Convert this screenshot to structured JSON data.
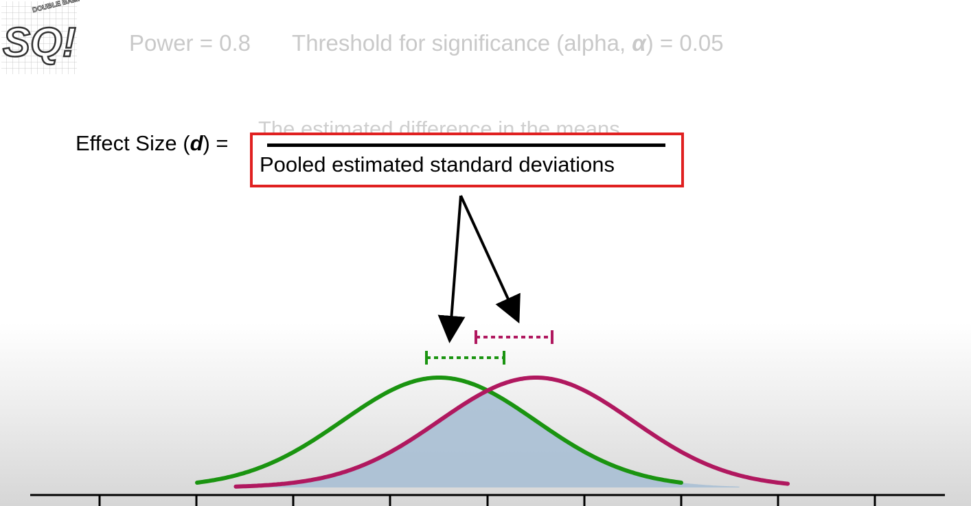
{
  "logo": {
    "letters": "SQ!",
    "badge_text": "DOUBLE BAM!!"
  },
  "header": {
    "power_label": "Power = 0.8",
    "alpha_prefix": "Threshold for significance (alpha, ",
    "alpha_symbol": "α",
    "alpha_suffix": ") = 0.05"
  },
  "formula": {
    "lhs_prefix": "Effect Size (",
    "lhs_var": "d",
    "lhs_suffix": ") =",
    "numerator": "The estimated difference in the means",
    "denominator": "Pooled estimated standard deviations"
  },
  "colors": {
    "green_curve": "#1a9410",
    "magenta_curve": "#b0185f",
    "overlap_fill": "#a9bfd4",
    "highlight_box": "#e02020"
  },
  "distributions": {
    "green": {
      "mean": -0.25,
      "sd": 0.5
    },
    "magenta": {
      "mean": 0.25,
      "sd": 0.5
    }
  }
}
